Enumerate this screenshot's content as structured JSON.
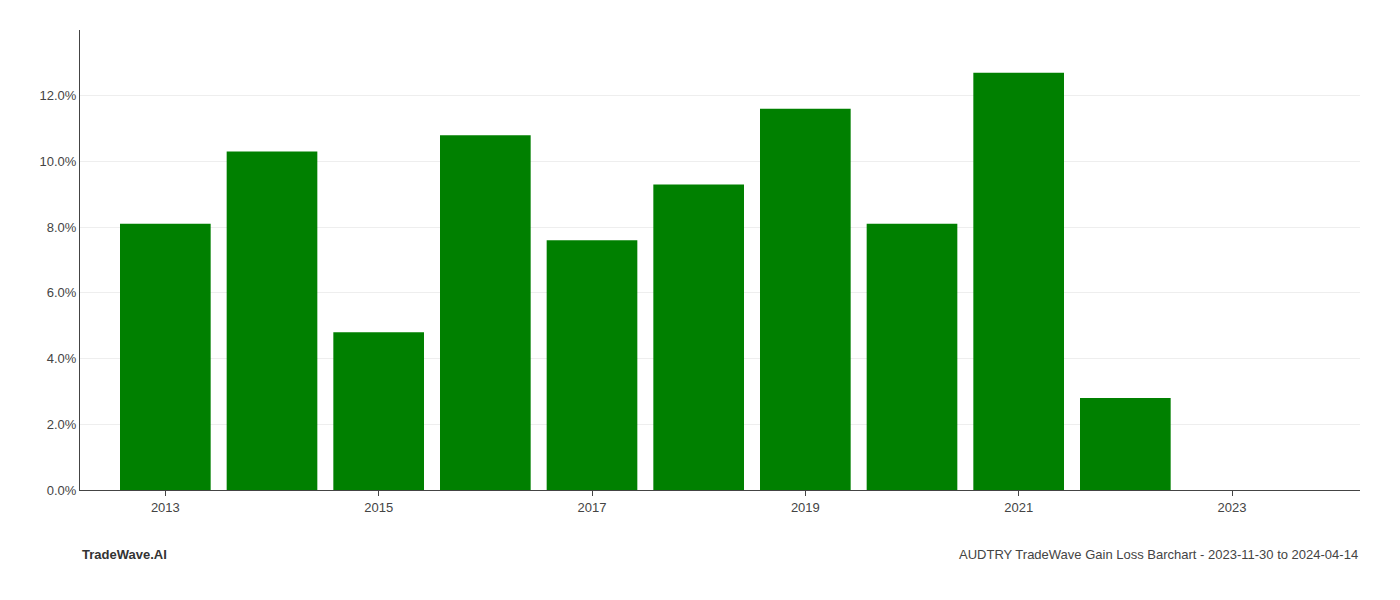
{
  "chart_data": {
    "type": "bar",
    "title": "AUDTRY TradeWave Gain Loss Barchart - 2023-11-30 to 2024-04-14",
    "annotations": [
      "TradeWave.AI"
    ],
    "x": [
      2013,
      2014,
      2015,
      2016,
      2017,
      2018,
      2019,
      2020,
      2021,
      2022,
      2023
    ],
    "values": [
      0.081,
      0.103,
      0.048,
      0.108,
      0.076,
      0.093,
      0.116,
      0.081,
      0.127,
      0.028,
      null
    ],
    "color": "#008000",
    "xlim": [
      2012.2,
      2024.2
    ],
    "xticks": [
      2013,
      2015,
      2017,
      2019,
      2021,
      2023
    ],
    "ylim": [
      0,
      0.14
    ],
    "yticks": [
      {
        "value": 0.0,
        "label": "0.0%"
      },
      {
        "value": 0.02,
        "label": "2.0%"
      },
      {
        "value": 0.04,
        "label": "4.0%"
      },
      {
        "value": 0.06,
        "label": "6.0%"
      },
      {
        "value": 0.08,
        "label": "8.0%"
      },
      {
        "value": 0.1,
        "label": "10.0%"
      },
      {
        "value": 0.12,
        "label": "12.0%"
      }
    ],
    "grid": true
  }
}
